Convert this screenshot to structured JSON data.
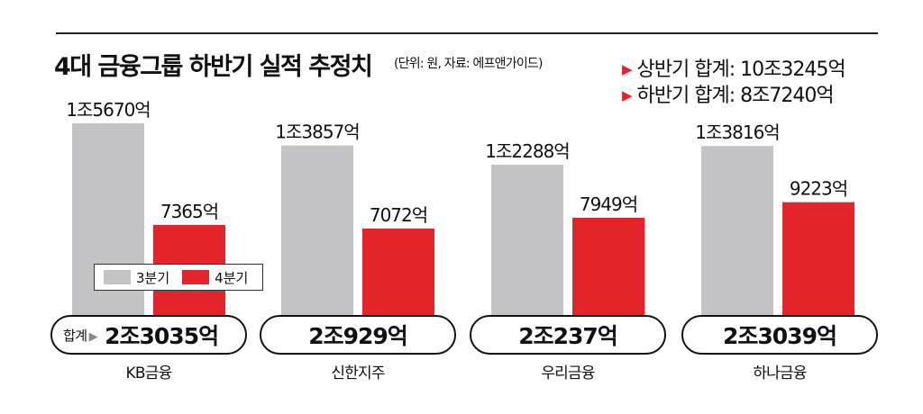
{
  "header": {
    "title": "4대 금융그룹 하반기 실적 추정치",
    "subtitle": "(단위: 원, 자료: 에프앤가이드)",
    "first_half_total": "상반기 합계: 10조3245억",
    "second_half_total": "하반기 합계: 8조7240억"
  },
  "colors": {
    "q3": "#c4c4c6",
    "q4": "#e3242b",
    "marker": "#e3242b"
  },
  "legend": {
    "q3": "3분기",
    "q4": "4분기"
  },
  "sum_prefix": "합계",
  "companies": [
    {
      "name": "KB금융",
      "q3_label": "1조5670억",
      "q4_label": "7365억",
      "total": "2조3035억"
    },
    {
      "name": "신한지주",
      "q3_label": "1조3857억",
      "q4_label": "7072억",
      "total": "2조929억"
    },
    {
      "name": "우리금융",
      "q3_label": "1조2288억",
      "q4_label": "7949억",
      "total": "2조237억"
    },
    {
      "name": "하나금융",
      "q3_label": "1조3816억",
      "q4_label": "9223억",
      "total": "2조3039억"
    }
  ],
  "chart_data": {
    "type": "bar",
    "categories": [
      "KB금융",
      "신한지주",
      "우리금융",
      "하나금융"
    ],
    "series": [
      {
        "name": "3분기",
        "values": [
          15670,
          13857,
          12288,
          13816
        ]
      },
      {
        "name": "4분기",
        "values": [
          7365,
          7072,
          7949,
          9223
        ]
      }
    ],
    "title": "4대 금융그룹 하반기 실적 추정치",
    "ylabel": "",
    "unit": "억 원",
    "ylim": [
      0,
      17000
    ],
    "grid": false,
    "legend_position": "bottom-left"
  }
}
